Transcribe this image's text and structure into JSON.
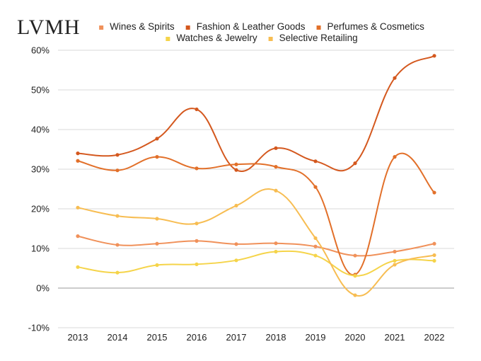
{
  "brand": {
    "logo_text": "LVMH"
  },
  "chart_data": {
    "type": "line",
    "title": "",
    "xlabel": "",
    "ylabel": "",
    "categories": [
      "2013",
      "2014",
      "2015",
      "2016",
      "2017",
      "2018",
      "2019",
      "2020",
      "2021",
      "2022"
    ],
    "ylim": [
      -10,
      60
    ],
    "yticks": [
      -10,
      0,
      10,
      20,
      30,
      40,
      50,
      60
    ],
    "ytick_labels": [
      "-10%",
      "0%",
      "10%",
      "20%",
      "30%",
      "40%",
      "50%",
      "60%"
    ],
    "grid": true,
    "legend_position": "top",
    "series": [
      {
        "name": "Wines & Spirits",
        "color": "#f0915a",
        "values": [
          13.1,
          10.9,
          11.2,
          11.9,
          11.1,
          11.3,
          10.5,
          8.2,
          9.2,
          11.2
        ]
      },
      {
        "name": "Fashion & Leather Goods",
        "color": "#d4581e",
        "values": [
          34.0,
          33.6,
          37.7,
          45.1,
          29.8,
          35.3,
          32.0,
          31.5,
          53.0,
          58.6
        ]
      },
      {
        "name": "Perfumes & Cosmetics",
        "color": "#e2702a",
        "values": [
          32.1,
          29.7,
          33.1,
          30.2,
          31.2,
          30.6,
          25.5,
          3.4,
          33.1,
          24.1
        ]
      },
      {
        "name": "Watches & Jewelry",
        "color": "#f5d44a",
        "values": [
          5.3,
          3.9,
          5.8,
          6.0,
          7.0,
          9.2,
          8.2,
          3.1,
          6.9,
          6.9
        ]
      },
      {
        "name": "Selective Retailing",
        "color": "#f7bd52",
        "values": [
          20.3,
          18.2,
          17.5,
          16.3,
          20.8,
          24.6,
          12.6,
          -1.8,
          5.9,
          8.3
        ]
      }
    ]
  }
}
